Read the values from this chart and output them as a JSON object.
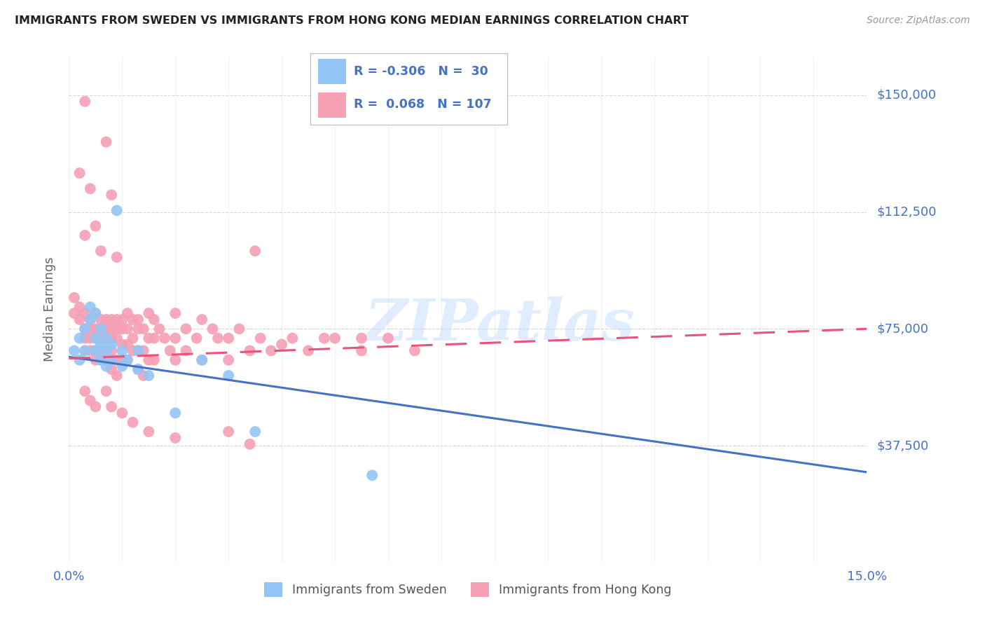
{
  "title": "IMMIGRANTS FROM SWEDEN VS IMMIGRANTS FROM HONG KONG MEDIAN EARNINGS CORRELATION CHART",
  "source": "Source: ZipAtlas.com",
  "ylabel": "Median Earnings",
  "xlim": [
    0.0,
    0.15
  ],
  "ylim": [
    0,
    162500
  ],
  "yticks": [
    0,
    37500,
    75000,
    112500,
    150000
  ],
  "ytick_labels": [
    "",
    "$37,500",
    "$75,000",
    "$112,500",
    "$150,000"
  ],
  "legend_r_sweden": "-0.306",
  "legend_n_sweden": "30",
  "legend_r_hongkong": "0.068",
  "legend_n_hongkong": "107",
  "sweden_color": "#92C5F5",
  "hongkong_color": "#F5A0B5",
  "line_sweden_color": "#4472C4",
  "line_hongkong_color": "#E8547A",
  "watermark": "ZIPatlas",
  "background_color": "#FFFFFF",
  "grid_color": "#CCCCCC",
  "axis_label_color": "#4472C4",
  "title_color": "#222222",
  "sw_line_y0": 66000,
  "sw_line_y1": 29000,
  "hk_line_y0": 65500,
  "hk_line_y1": 75000
}
